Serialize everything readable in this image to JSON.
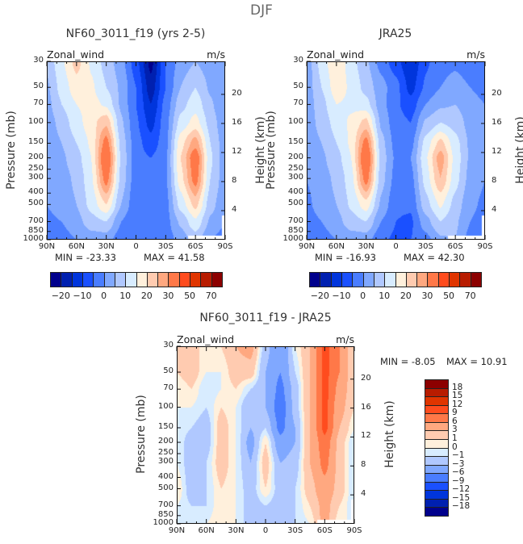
{
  "title": "DJF",
  "chart_data": [
    {
      "type": "heatmap",
      "id": "model",
      "title": "NF60_3011_f19 (yrs 2-5)",
      "left_label": "Zonal_wind",
      "units": "m/s",
      "ylabel": "Pressure (mb)",
      "y2label": "Height (km)",
      "min_text": "MIN = -23.33",
      "max_text": "MAX = 41.58",
      "x_ticks": [
        "90N",
        "60N",
        "30N",
        "0",
        "30S",
        "60S",
        "90S"
      ],
      "y_ticks": [
        30,
        50,
        70,
        100,
        150,
        200,
        250,
        300,
        400,
        500,
        700,
        850,
        1000
      ],
      "y2_ticks": [
        4,
        8,
        12,
        16,
        20
      ],
      "levels": [
        -20,
        -15,
        -10,
        -5,
        0,
        5,
        10,
        15,
        20,
        25,
        30,
        40,
        50,
        60,
        70
      ],
      "colorbar_labels": [
        "-20",
        "-10",
        "0",
        "10",
        "20",
        "30",
        "50",
        "70"
      ],
      "grid_lat": [
        90,
        75,
        60,
        45,
        30,
        15,
        0,
        -15,
        -30,
        -45,
        -60,
        -75,
        -90
      ],
      "grid_p": [
        30,
        50,
        70,
        100,
        150,
        200,
        300,
        500,
        700,
        1000
      ],
      "values": [
        [
          6,
          14,
          22,
          14,
          8,
          2,
          -8,
          -22,
          -5,
          2,
          5,
          2,
          0
        ],
        [
          4,
          12,
          18,
          16,
          10,
          4,
          -5,
          -18,
          -5,
          5,
          10,
          4,
          0
        ],
        [
          3,
          10,
          15,
          17,
          14,
          4,
          -5,
          -15,
          -3,
          8,
          13,
          6,
          0
        ],
        [
          2,
          7,
          13,
          18,
          24,
          6,
          -4,
          -12,
          -2,
          12,
          17,
          8,
          1
        ],
        [
          1,
          5,
          10,
          16,
          33,
          8,
          -3,
          -8,
          -2,
          18,
          28,
          10,
          2
        ],
        [
          0,
          4,
          8,
          15,
          38,
          9,
          -3,
          -5,
          -1,
          20,
          35,
          11,
          2
        ],
        [
          0,
          3,
          6,
          14,
          33,
          8,
          -3,
          -4,
          -1,
          18,
          33,
          10,
          2
        ],
        [
          0,
          2,
          5,
          12,
          20,
          5,
          -4,
          -4,
          -2,
          12,
          22,
          7,
          1
        ],
        [
          -1,
          0,
          3,
          8,
          10,
          0,
          -5,
          -5,
          -2,
          6,
          14,
          4,
          0
        ],
        [
          -2,
          -2,
          0,
          2,
          2,
          -3,
          -5,
          -4,
          -3,
          2,
          7,
          0,
          -2
        ]
      ]
    },
    {
      "type": "heatmap",
      "id": "obs",
      "title": "JRA25",
      "left_label": "Zonal_wind",
      "units": "m/s",
      "ylabel": "Pressure (mb)",
      "y2label": "Height (km)",
      "min_text": "MIN = -16.93",
      "max_text": "MAX = 42.30",
      "x_ticks": [
        "90N",
        "60N",
        "30N",
        "0",
        "30S",
        "60S",
        "90S"
      ],
      "y_ticks": [
        30,
        50,
        70,
        100,
        150,
        200,
        250,
        300,
        400,
        500,
        700,
        850,
        1000
      ],
      "y2_ticks": [
        4,
        8,
        12,
        16,
        20
      ],
      "levels": [
        -20,
        -15,
        -10,
        -5,
        0,
        5,
        10,
        15,
        20,
        25,
        30,
        40,
        50,
        60,
        70
      ],
      "colorbar_labels": [
        "-20",
        "-10",
        "0",
        "10",
        "20",
        "30",
        "50",
        "70"
      ],
      "grid_lat": [
        90,
        75,
        60,
        45,
        30,
        15,
        0,
        -15,
        -30,
        -45,
        -60,
        -75,
        -90
      ],
      "grid_p": [
        30,
        50,
        70,
        100,
        150,
        200,
        300,
        500,
        700,
        1000
      ],
      "values": [
        [
          2,
          12,
          20,
          12,
          6,
          -2,
          -8,
          -15,
          -6,
          -2,
          -1,
          -3,
          -3
        ],
        [
          2,
          10,
          18,
          14,
          8,
          2,
          -3,
          -12,
          -4,
          0,
          2,
          0,
          -2
        ],
        [
          2,
          8,
          15,
          14,
          12,
          2,
          -4,
          -8,
          0,
          4,
          5,
          2,
          0
        ],
        [
          2,
          7,
          12,
          16,
          22,
          4,
          -3,
          -5,
          6,
          10,
          8,
          3,
          0
        ],
        [
          1,
          5,
          10,
          16,
          33,
          7,
          -2,
          -2,
          12,
          22,
          12,
          4,
          0
        ],
        [
          0,
          4,
          8,
          15,
          38,
          8,
          -1,
          0,
          14,
          28,
          13,
          4,
          0
        ],
        [
          0,
          3,
          6,
          13,
          33,
          7,
          -2,
          -2,
          12,
          25,
          12,
          3,
          0
        ],
        [
          -1,
          2,
          5,
          11,
          18,
          4,
          -4,
          -4,
          8,
          16,
          8,
          1,
          -1
        ],
        [
          -2,
          0,
          3,
          8,
          10,
          0,
          -5,
          -6,
          3,
          10,
          6,
          0,
          -2
        ],
        [
          -3,
          -2,
          0,
          2,
          2,
          -4,
          -6,
          -5,
          -2,
          4,
          5,
          -2,
          -3
        ]
      ]
    },
    {
      "type": "heatmap",
      "id": "diff",
      "title": "NF60_3011_f19 - JRA25",
      "left_label": "Zonal_wind",
      "units": "m/s",
      "ylabel": "Pressure (mb)",
      "y2label": "Height (km)",
      "min_text": "MIN = -8.05",
      "max_text": "MAX = 10.91",
      "x_ticks": [
        "90N",
        "60N",
        "30N",
        "0",
        "30S",
        "60S",
        "90S"
      ],
      "y_ticks": [
        30,
        50,
        70,
        100,
        150,
        200,
        250,
        300,
        400,
        500,
        700,
        850,
        1000
      ],
      "y2_ticks": [
        4,
        8,
        12,
        16,
        20
      ],
      "levels": [
        -18,
        -15,
        -12,
        -9,
        -6,
        -3,
        -1,
        0,
        1,
        3,
        6,
        9,
        12,
        15,
        18
      ],
      "colorbar_labels": [
        "18",
        "15",
        "12",
        "9",
        "6",
        "3",
        "1",
        "0",
        "-1",
        "-3",
        "-6",
        "-9",
        "-12",
        "-15",
        "-18"
      ],
      "grid_lat": [
        90,
        75,
        60,
        45,
        30,
        15,
        0,
        -15,
        -30,
        -45,
        -60,
        -75,
        -90
      ],
      "grid_p": [
        30,
        50,
        70,
        100,
        150,
        200,
        300,
        500,
        700,
        1000
      ],
      "values": [
        [
          1,
          2,
          0,
          1,
          3,
          4,
          -2,
          -6,
          0,
          3,
          10,
          6,
          1
        ],
        [
          1,
          2,
          0,
          0,
          2,
          2,
          -3,
          -6,
          -1,
          3,
          10,
          6,
          1
        ],
        [
          0,
          1,
          -1,
          0,
          1,
          -1,
          -3,
          -7,
          -2,
          3,
          10,
          5,
          1
        ],
        [
          0,
          0,
          -1,
          1,
          0,
          -3,
          -3,
          -8,
          -2,
          3,
          10,
          4,
          1
        ],
        [
          0,
          -1,
          -2,
          2,
          0,
          -3,
          -1,
          -7,
          -3,
          3,
          10,
          3,
          0
        ],
        [
          0,
          -2,
          -2,
          2,
          0,
          -4,
          1,
          -5,
          -3,
          3,
          8,
          2,
          -1
        ],
        [
          0,
          -2,
          -1,
          2,
          0,
          -3,
          2,
          -3,
          -2,
          3,
          7,
          2,
          -1
        ],
        [
          1,
          -2,
          -1,
          1,
          0,
          -2,
          1,
          -2,
          -1,
          2,
          5,
          2,
          -1
        ],
        [
          0,
          -1,
          -1,
          1,
          0,
          -2,
          -1,
          -2,
          -1,
          1,
          4,
          1,
          -1
        ],
        [
          0,
          -1,
          0,
          1,
          0,
          -2,
          -2,
          -2,
          -1,
          0,
          4,
          0,
          0
        ]
      ]
    }
  ],
  "colors": [
    "#00008c",
    "#0020b0",
    "#0035dc",
    "#1a50ff",
    "#4a7dff",
    "#80a8ff",
    "#b0c8ff",
    "#d8ecff",
    "#fff0dc",
    "#ffcbb0",
    "#ffa880",
    "#ff7848",
    "#ff4c1e",
    "#e03500",
    "#b81c00",
    "#8c0000"
  ]
}
